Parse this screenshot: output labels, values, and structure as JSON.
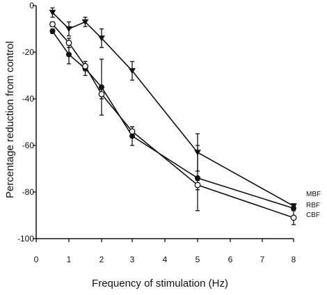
{
  "chart_data": {
    "type": "line",
    "title": "",
    "xlabel": "Frequency of stimulation (Hz)",
    "ylabel": "Percentage reduction from control",
    "xlim": [
      0,
      8
    ],
    "ylim": [
      -100,
      0
    ],
    "x_scale": "piecewise-linear",
    "x_ticks": [
      0,
      1,
      2,
      3,
      4,
      5,
      6,
      7,
      8
    ],
    "y_ticks": [
      0,
      -20,
      -40,
      -60,
      -80,
      -100
    ],
    "grid": false,
    "legend_placement": "right, at line ends",
    "series": [
      {
        "name": "MBF",
        "marker": "triangle-down-filled",
        "x": [
          0.5,
          1,
          1.5,
          2,
          3,
          5,
          8
        ],
        "y": [
          -3,
          -10,
          -7,
          -14,
          -28,
          -63,
          -86
        ],
        "err": [
          2,
          3,
          2,
          4,
          4,
          8,
          1
        ]
      },
      {
        "name": "RBF",
        "marker": "circle-filled",
        "x": [
          0.5,
          1,
          1.5,
          2,
          3,
          5,
          8
        ],
        "y": [
          -11,
          -21,
          -27,
          -35,
          -56,
          -74,
          -87
        ],
        "err": [
          1,
          4,
          3,
          12,
          4,
          14,
          1
        ]
      },
      {
        "name": "CBF",
        "marker": "circle-open",
        "x": [
          0.5,
          1,
          1.5,
          2,
          3,
          5,
          8
        ],
        "y": [
          -8,
          -16,
          -26,
          -38,
          -54,
          -77,
          -91
        ],
        "err": [
          1,
          2,
          2,
          2,
          2,
          2,
          3
        ]
      }
    ]
  },
  "colors": {
    "ink": "#111111",
    "background": "#ffffff"
  }
}
